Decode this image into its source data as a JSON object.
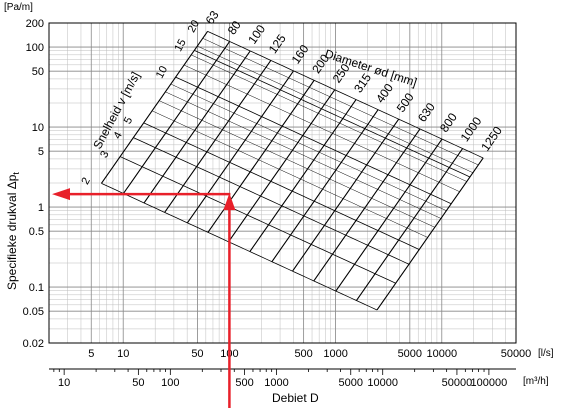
{
  "chart_data": {
    "type": "line",
    "chart_kind": "duct friction-loss nomogram",
    "y_axis": {
      "label": "Specifieke drukval  Δp",
      "label_subscript": "t",
      "unit": "[Pa/m]",
      "scale": "log",
      "range": [
        0.02,
        200
      ],
      "tick_labels": [
        "200",
        "100",
        "50",
        "10",
        "5",
        "1",
        "0.5",
        "0.1",
        "0.05",
        "0.02"
      ],
      "tick_values": [
        200,
        100,
        50,
        10,
        5,
        1,
        0.5,
        0.1,
        0.05,
        0.02
      ]
    },
    "x_axis_primary": {
      "unit": "[l/s]",
      "scale": "log",
      "range": [
        2,
        50000
      ],
      "tick_labels": [
        "5",
        "10",
        "50",
        "100",
        "500",
        "1000",
        "5000",
        "10000",
        "50000"
      ],
      "tick_values": [
        5,
        10,
        50,
        100,
        500,
        1000,
        5000,
        10000,
        50000
      ]
    },
    "x_axis_secondary": {
      "unit": "[m³/h]",
      "scale": "log",
      "tick_labels": [
        "10",
        "50",
        "100",
        "500",
        "1000",
        "5000",
        "10000",
        "50000",
        "100000"
      ],
      "tick_values": [
        10,
        50,
        100,
        500,
        1000,
        5000,
        10000,
        50000,
        100000
      ]
    },
    "x_axis_title": "Debiet D",
    "diameter_title": "Diameter ød [mm]",
    "diameter_labels": [
      "63",
      "80",
      "100",
      "125",
      "160",
      "200",
      "250",
      "315",
      "400",
      "500",
      "630",
      "800",
      "1000",
      "1250"
    ],
    "diameter_values": [
      63,
      80,
      100,
      125,
      160,
      200,
      250,
      315,
      400,
      500,
      630,
      800,
      1000,
      1250
    ],
    "velocity_title": "Snelheid v [m/s]",
    "velocity_labels": [
      "20",
      "15",
      "10",
      "5",
      "4",
      "3",
      "2"
    ],
    "velocity_values": [
      20,
      15,
      10,
      5,
      4,
      3,
      2
    ],
    "grid": true,
    "example_reading": {
      "flow_ls": 100,
      "pressure_drop_pa_m": 1.45,
      "color": "#e8202a"
    },
    "line_color": "#000000",
    "grid_color": "#bdbdbd"
  }
}
